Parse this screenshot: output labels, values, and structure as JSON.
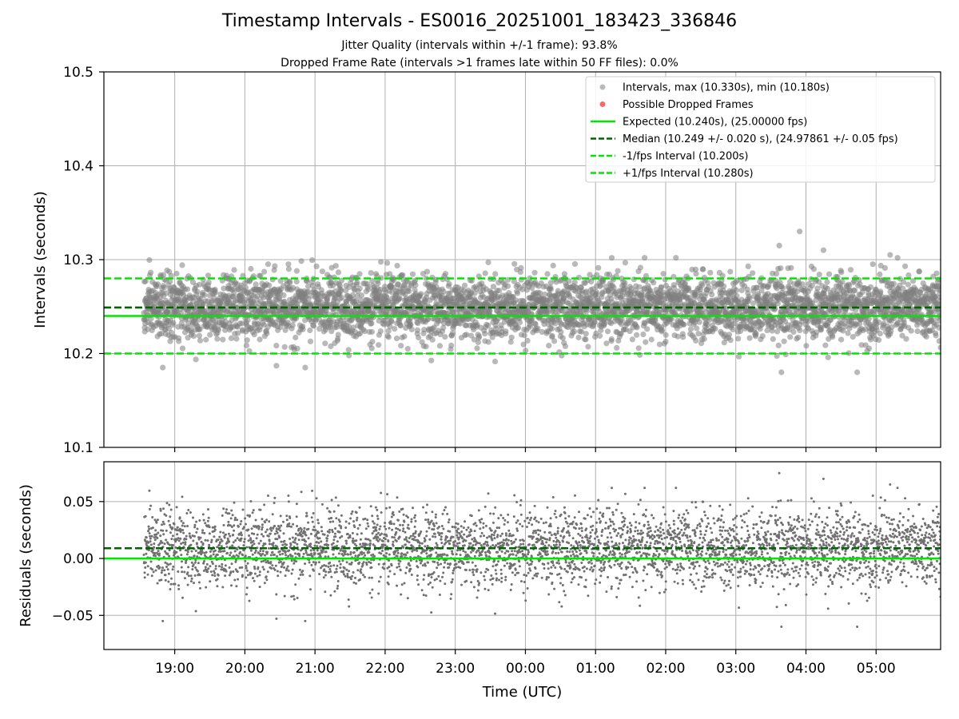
{
  "header": {
    "title": "Timestamp Intervals - ES0016_20251001_183423_336846",
    "subtitle_jitter": "Jitter Quality (intervals within +/-1 frame): 93.8%",
    "subtitle_dropped": "Dropped Frame Rate (intervals >1 frames late within 50 FF files): 0.0%"
  },
  "colors": {
    "points": "#808080",
    "dropped": "#ff0000",
    "expected": "#00e600",
    "median": "#006400",
    "fps_bounds": "#00e600",
    "grid": "#b0b0b0"
  },
  "chart_data": [
    {
      "type": "scatter",
      "panel": "intervals",
      "ylabel": "Intervals (seconds)",
      "ylim": [
        10.1,
        10.5
      ],
      "yticks": [
        "10.1",
        "10.2",
        "10.3",
        "10.4",
        "10.5"
      ],
      "xlim_hours": [
        17.99,
        29.92
      ],
      "grid": true,
      "legend_position": "upper-right",
      "series": [
        {
          "name": "Intervals, max (10.330s), min (10.180s)",
          "kind": "scatter",
          "color": "#808080",
          "summary": {
            "count": 4200,
            "x_start_hours": 18.56,
            "x_end_hours": 29.92,
            "max": 10.33,
            "min": 10.18
          }
        },
        {
          "name": "Possible Dropped Frames",
          "kind": "scatter",
          "color": "#ff0000",
          "values": []
        },
        {
          "name": "Expected (10.240s), (25.00000 fps)",
          "kind": "hline",
          "y": 10.24,
          "style": "solid",
          "color": "#00e600"
        },
        {
          "name": "Median (10.249 +/- 0.020 s), (24.97861 +/- 0.05 fps)",
          "kind": "hline",
          "y": 10.249,
          "style": "dashed",
          "color": "#006400"
        },
        {
          "name": "-1/fps Interval (10.200s)",
          "kind": "hline",
          "y": 10.2,
          "style": "dashed",
          "color": "#00e600"
        },
        {
          "name": "+1/fps Interval (10.280s)",
          "kind": "hline",
          "y": 10.28,
          "style": "dashed",
          "color": "#00e600"
        }
      ],
      "outliers": [
        {
          "x_hours": 27.91,
          "y": 10.33
        },
        {
          "x_hours": 27.62,
          "y": 10.315
        },
        {
          "x_hours": 28.25,
          "y": 10.31
        },
        {
          "x_hours": 29.2,
          "y": 10.305
        },
        {
          "x_hours": 28.73,
          "y": 10.18
        },
        {
          "x_hours": 27.65,
          "y": 10.18
        },
        {
          "x_hours": 18.83,
          "y": 10.185
        },
        {
          "x_hours": 20.45,
          "y": 10.187
        },
        {
          "x_hours": 20.86,
          "y": 10.185
        }
      ]
    },
    {
      "type": "scatter",
      "panel": "residuals",
      "xlabel": "Time (UTC)",
      "ylabel": "Residuals (seconds)",
      "ylim": [
        -0.08,
        0.085
      ],
      "yticks": [
        "−0.05",
        "0.00",
        "0.05"
      ],
      "ytick_values": [
        -0.05,
        0.0,
        0.05
      ],
      "xticks": [
        "19:00",
        "20:00",
        "21:00",
        "22:00",
        "23:00",
        "00:00",
        "01:00",
        "02:00",
        "03:00",
        "04:00",
        "05:00"
      ],
      "xtick_hours": [
        19,
        20,
        21,
        22,
        23,
        24,
        25,
        26,
        27,
        28,
        29
      ],
      "xlim_hours": [
        17.99,
        29.92
      ],
      "grid": true,
      "series": [
        {
          "name": "Residuals",
          "kind": "scatter",
          "color": "#808080",
          "summary": {
            "count": 4200,
            "max": 0.08,
            "min": -0.06
          }
        },
        {
          "name": "Zero",
          "kind": "hline",
          "y": 0.0,
          "style": "solid",
          "color": "#00e600"
        },
        {
          "name": "Median offset",
          "kind": "hline",
          "y": 0.009,
          "style": "dashed",
          "color": "#006400"
        }
      ]
    }
  ]
}
